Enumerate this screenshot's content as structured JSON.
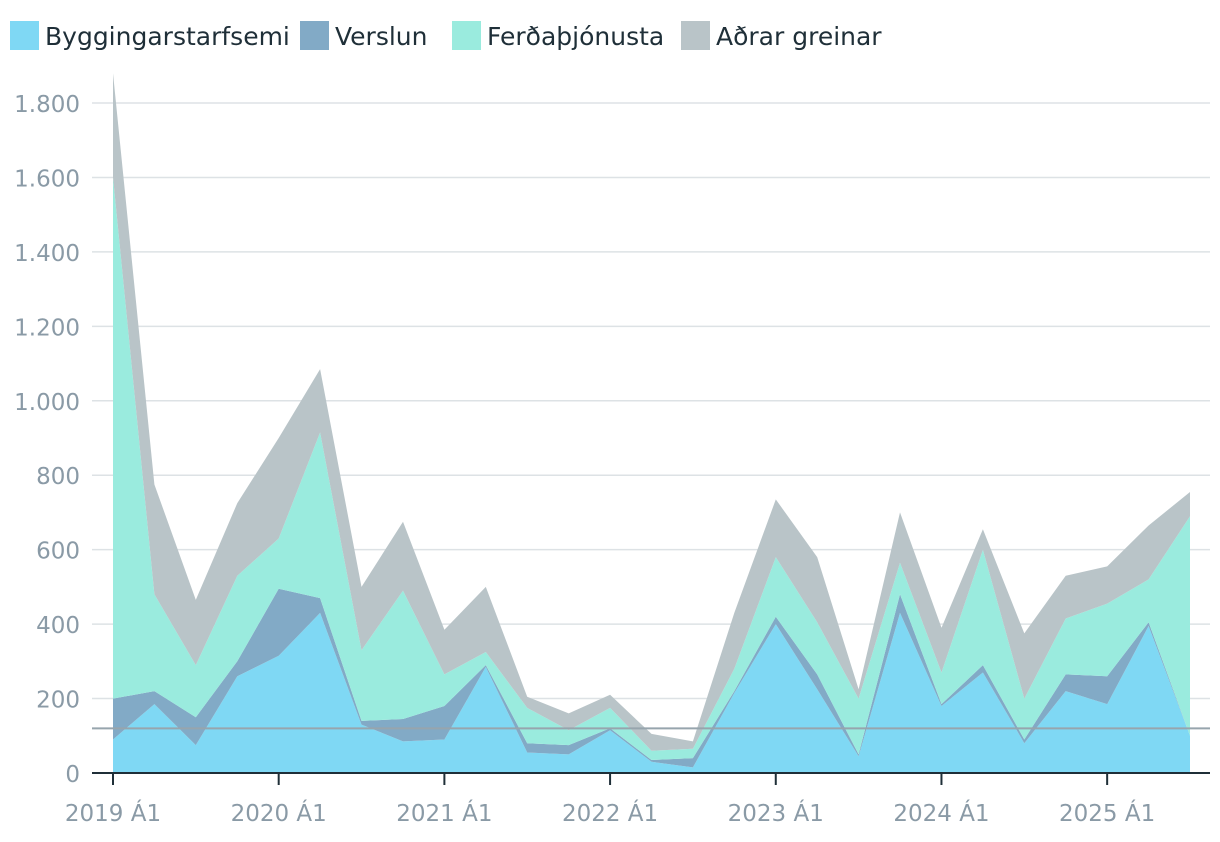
{
  "chart_data": {
    "type": "area",
    "stacked": true,
    "legend_position": "top-left",
    "grid": true,
    "ylim": [
      0,
      1800
    ],
    "yticks": [
      0,
      200,
      400,
      600,
      800,
      1000,
      1200,
      1400,
      1600,
      1800
    ],
    "ytick_labels": [
      "0",
      "200",
      "400",
      "600",
      "800",
      "1.000",
      "1.200",
      "1.400",
      "1.600",
      "1.800"
    ],
    "xtick_labels": [
      "2019 Á1",
      "2020 Á1",
      "2021 Á1",
      "2022 Á1",
      "2023 Á1",
      "2024 Á1",
      "2025 Á1"
    ],
    "xtick_index": [
      0,
      4,
      8,
      12,
      16,
      20,
      24
    ],
    "reference_line": 120,
    "x": [
      "2019 Á1",
      "2019 Á2",
      "2019 Á3",
      "2019 Á4",
      "2020 Á1",
      "2020 Á2",
      "2020 Á3",
      "2020 Á4",
      "2021 Á1",
      "2021 Á2",
      "2021 Á3",
      "2021 Á4",
      "2022 Á1",
      "2022 Á2",
      "2022 Á3",
      "2022 Á4",
      "2023 Á1",
      "2023 Á2",
      "2023 Á3",
      "2023 Á4",
      "2024 Á1",
      "2024 Á2",
      "2024 Á3",
      "2024 Á4",
      "2025 Á1",
      "2025 Á2",
      "2025 Á3"
    ],
    "series": [
      {
        "name": "Byggingarstarfsemi",
        "color": "#7fd8f4",
        "values": [
          90,
          185,
          75,
          260,
          315,
          430,
          130,
          85,
          90,
          285,
          55,
          50,
          115,
          30,
          15,
          215,
          400,
          225,
          45,
          430,
          180,
          270,
          80,
          220,
          185,
          395,
          100
        ]
      },
      {
        "name": "Verslun",
        "color": "#82aac6",
        "values": [
          110,
          35,
          75,
          40,
          180,
          40,
          10,
          60,
          90,
          5,
          25,
          25,
          5,
          5,
          25,
          5,
          20,
          40,
          5,
          50,
          5,
          20,
          10,
          45,
          75,
          10,
          0
        ]
      },
      {
        "name": "Ferðaþjónusta",
        "color": "#9aebde",
        "values": [
          1400,
          260,
          140,
          230,
          135,
          445,
          190,
          345,
          85,
          35,
          95,
          40,
          55,
          25,
          25,
          60,
          160,
          140,
          150,
          85,
          85,
          310,
          110,
          150,
          195,
          115,
          590
        ]
      },
      {
        "name": "Aðrar greinar",
        "color": "#b9c4c8",
        "values": [
          280,
          295,
          175,
          195,
          270,
          170,
          170,
          185,
          120,
          175,
          30,
          45,
          35,
          45,
          20,
          150,
          155,
          175,
          25,
          135,
          120,
          55,
          175,
          115,
          100,
          145,
          65
        ]
      }
    ]
  }
}
